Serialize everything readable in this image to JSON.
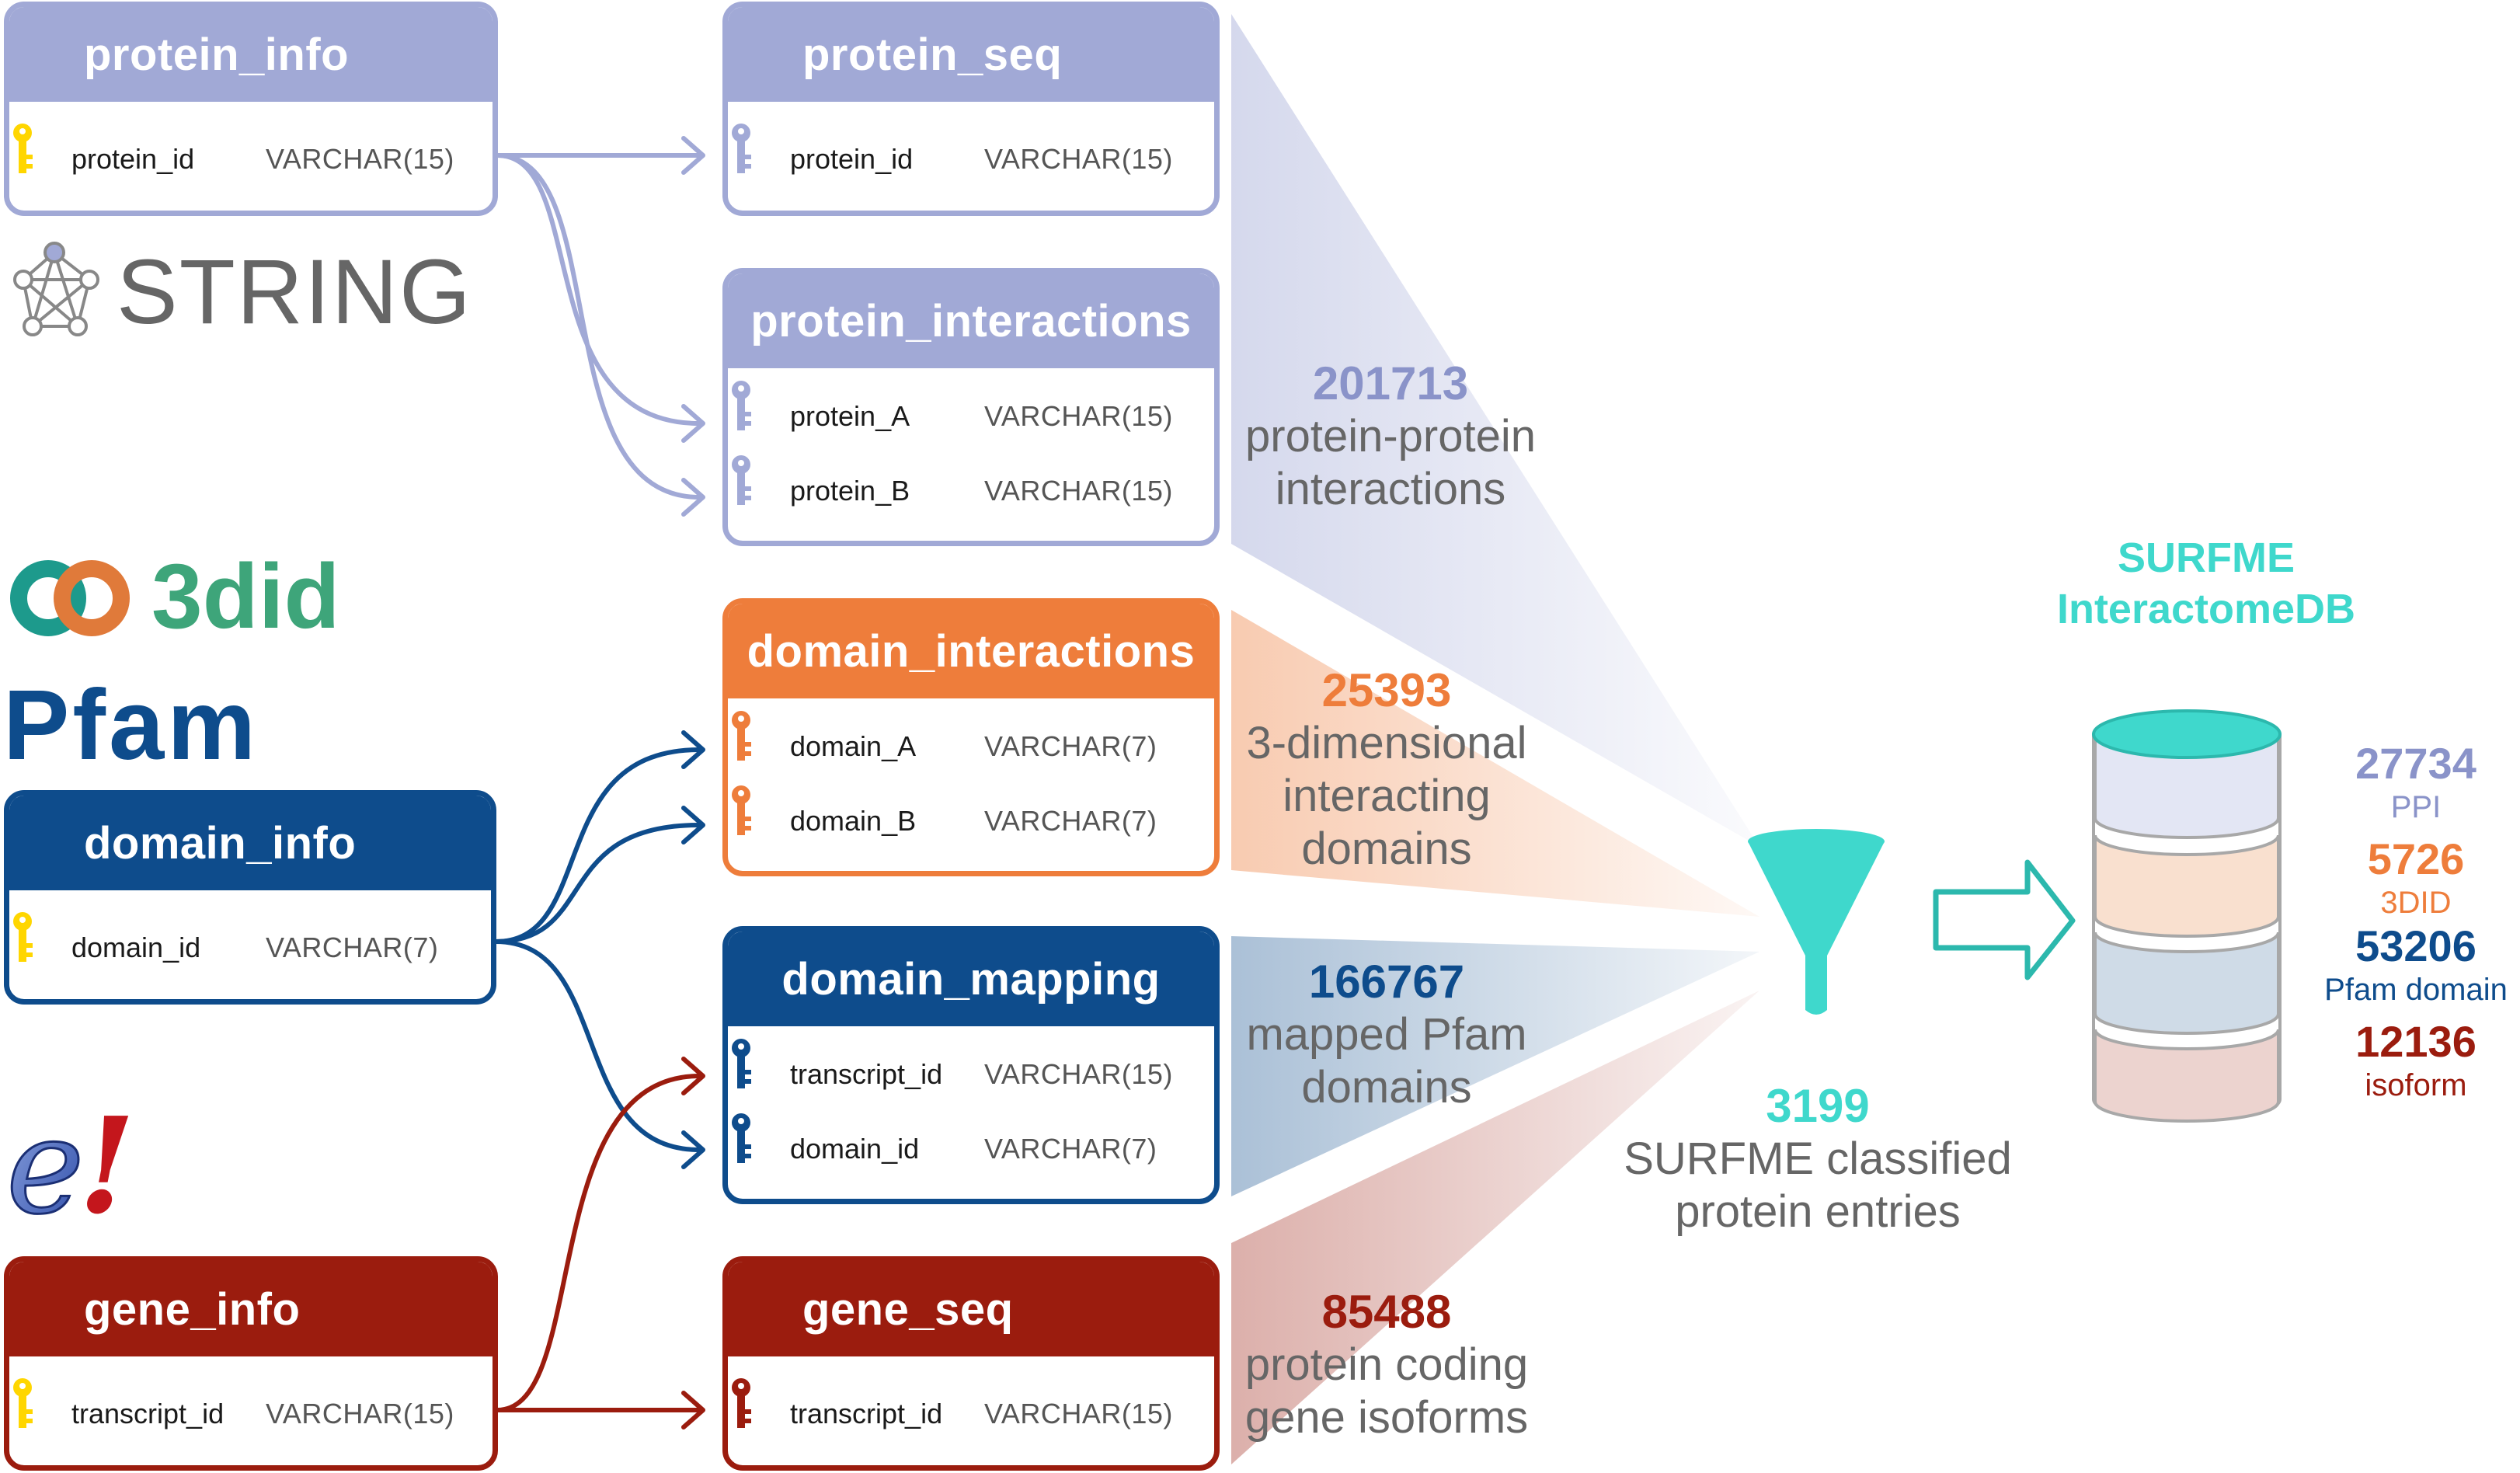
{
  "colors": {
    "string": "#a1a9d6",
    "threedid": "#ee7d3b",
    "pfam": "#0e4c8c",
    "ensembl": "#9b1c0e",
    "cyan": "#3fd8cc",
    "key_yellow": "#ffd600",
    "grey_text": "#666666"
  },
  "logos": {
    "string": "STRING",
    "threedid": "3did",
    "pfam": "Pfam",
    "ensembl": "e!"
  },
  "tables": {
    "protein_info": {
      "title": "protein_info",
      "rows": [
        {
          "name": "protein_id",
          "type": "VARCHAR(15)"
        }
      ]
    },
    "protein_seq": {
      "title": "protein_seq",
      "rows": [
        {
          "name": "protein_id",
          "type": "VARCHAR(15)"
        }
      ]
    },
    "protein_interactions": {
      "title": "protein_interactions",
      "rows": [
        {
          "name": "protein_A",
          "type": "VARCHAR(15)"
        },
        {
          "name": "protein_B",
          "type": "VARCHAR(15)"
        }
      ]
    },
    "domain_interactions": {
      "title": "domain_interactions",
      "rows": [
        {
          "name": "domain_A",
          "type": "VARCHAR(7)"
        },
        {
          "name": "domain_B",
          "type": "VARCHAR(7)"
        }
      ]
    },
    "domain_info": {
      "title": "domain_info",
      "rows": [
        {
          "name": "domain_id",
          "type": "VARCHAR(7)"
        }
      ]
    },
    "domain_mapping": {
      "title": "domain_mapping",
      "rows": [
        {
          "name": "transcript_id",
          "type": "VARCHAR(15)"
        },
        {
          "name": "domain_id",
          "type": "VARCHAR(7)"
        }
      ]
    },
    "gene_info": {
      "title": "gene_info",
      "rows": [
        {
          "name": "transcript_id",
          "type": "VARCHAR(15)"
        }
      ]
    },
    "gene_seq": {
      "title": "gene_seq",
      "rows": [
        {
          "name": "transcript_id",
          "type": "VARCHAR(15)"
        }
      ]
    }
  },
  "stats": {
    "ppi": {
      "value": "201713",
      "line1": "protein-protein",
      "line2": "interactions"
    },
    "ddi": {
      "value": "25393",
      "line1": "3-dimensional",
      "line2": "interacting",
      "line3": "domains"
    },
    "pfam": {
      "value": "166767",
      "line1": "mapped Pfam",
      "line2": "domains"
    },
    "isoforms": {
      "value": "85488",
      "line1": "protein coding",
      "line2": "gene isoforms"
    },
    "surfme": {
      "value": "3199",
      "line1": "SURFME classified",
      "line2": "protein entries"
    }
  },
  "database": {
    "title_line1": "SURFME",
    "title_line2": "InteractomeDB",
    "layers": [
      {
        "value": "27734",
        "label": "PPI"
      },
      {
        "value": "5726",
        "label": "3DID"
      },
      {
        "value": "53206",
        "label": "Pfam domain"
      },
      {
        "value": "12136",
        "label": "isoform"
      }
    ]
  }
}
